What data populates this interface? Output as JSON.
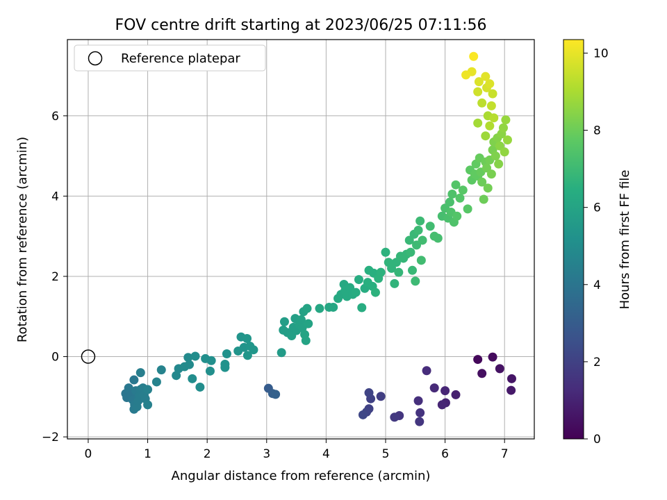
{
  "chart_data": {
    "type": "scatter",
    "title": "FOV centre drift starting at 2023/06/25 07:11:56",
    "xlabel": "Angular distance from reference (arcmin)",
    "ylabel": "Rotation from reference (arcmin)",
    "xlim": [
      -0.35,
      7.5
    ],
    "ylim": [
      -2.05,
      7.9
    ],
    "xticks": [
      0,
      1,
      2,
      3,
      4,
      5,
      6,
      7
    ],
    "yticks": [
      -2,
      0,
      2,
      4,
      6
    ],
    "grid": true,
    "legend": {
      "position": "top-left",
      "entries": [
        "Reference platepar"
      ]
    },
    "reference_point": {
      "x": 0,
      "y": 0,
      "marker": "open-circle"
    },
    "colorbar": {
      "label": "Hours from first FF file",
      "colormap": "viridis",
      "range": [
        0,
        10.35
      ],
      "ticks": [
        0,
        2,
        4,
        6,
        8,
        10
      ]
    },
    "points": [
      {
        "x": 6.55,
        "y": -0.07,
        "c": 0.2
      },
      {
        "x": 6.8,
        "y": -0.01,
        "c": 0.3
      },
      {
        "x": 6.92,
        "y": -0.3,
        "c": 0.5
      },
      {
        "x": 7.12,
        "y": -0.55,
        "c": 0.6
      },
      {
        "x": 7.11,
        "y": -0.84,
        "c": 0.7
      },
      {
        "x": 6.62,
        "y": -0.42,
        "c": 0.4
      },
      {
        "x": 6.18,
        "y": -0.95,
        "c": 0.9
      },
      {
        "x": 6.0,
        "y": -0.85,
        "c": 1.1
      },
      {
        "x": 5.82,
        "y": -0.78,
        "c": 1.2
      },
      {
        "x": 5.69,
        "y": -0.35,
        "c": 1.3
      },
      {
        "x": 6.01,
        "y": -1.15,
        "c": 1.0
      },
      {
        "x": 5.95,
        "y": -1.2,
        "c": 1.1
      },
      {
        "x": 5.55,
        "y": -1.1,
        "c": 1.4
      },
      {
        "x": 5.58,
        "y": -1.4,
        "c": 1.5
      },
      {
        "x": 5.57,
        "y": -1.62,
        "c": 1.6
      },
      {
        "x": 5.23,
        "y": -1.47,
        "c": 1.6
      },
      {
        "x": 5.15,
        "y": -1.51,
        "c": 1.7
      },
      {
        "x": 4.92,
        "y": -0.99,
        "c": 1.9
      },
      {
        "x": 4.75,
        "y": -1.05,
        "c": 2.0
      },
      {
        "x": 4.72,
        "y": -0.9,
        "c": 2.1
      },
      {
        "x": 4.72,
        "y": -1.3,
        "c": 2.0
      },
      {
        "x": 4.68,
        "y": -1.38,
        "c": 2.1
      },
      {
        "x": 4.62,
        "y": -1.45,
        "c": 2.2
      },
      {
        "x": 3.03,
        "y": -0.79,
        "c": 3.0
      },
      {
        "x": 3.1,
        "y": -0.92,
        "c": 3.1
      },
      {
        "x": 3.15,
        "y": -0.94,
        "c": 3.2
      },
      {
        "x": 0.63,
        "y": -0.92,
        "c": 4.0
      },
      {
        "x": 0.65,
        "y": -1.02,
        "c": 4.0
      },
      {
        "x": 0.68,
        "y": -0.78,
        "c": 4.1
      },
      {
        "x": 0.72,
        "y": -0.95,
        "c": 4.0
      },
      {
        "x": 0.75,
        "y": -1.08,
        "c": 4.1
      },
      {
        "x": 0.77,
        "y": -0.58,
        "c": 4.1
      },
      {
        "x": 0.78,
        "y": -1.2,
        "c": 4.2
      },
      {
        "x": 0.77,
        "y": -1.31,
        "c": 4.2
      },
      {
        "x": 0.8,
        "y": -0.85,
        "c": 4.2
      },
      {
        "x": 0.82,
        "y": -1.25,
        "c": 4.3
      },
      {
        "x": 0.84,
        "y": -1.1,
        "c": 4.3
      },
      {
        "x": 0.86,
        "y": -0.98,
        "c": 4.3
      },
      {
        "x": 0.88,
        "y": -0.82,
        "c": 4.3
      },
      {
        "x": 0.88,
        "y": -0.4,
        "c": 4.4
      },
      {
        "x": 0.92,
        "y": -0.78,
        "c": 4.4
      },
      {
        "x": 0.94,
        "y": -0.95,
        "c": 4.4
      },
      {
        "x": 0.96,
        "y": -1.05,
        "c": 4.4
      },
      {
        "x": 1.0,
        "y": -0.82,
        "c": 4.5
      },
      {
        "x": 1.0,
        "y": -1.2,
        "c": 4.5
      },
      {
        "x": 1.15,
        "y": -0.63,
        "c": 4.6
      },
      {
        "x": 1.23,
        "y": -0.33,
        "c": 4.6
      },
      {
        "x": 1.48,
        "y": -0.47,
        "c": 4.8
      },
      {
        "x": 1.52,
        "y": -0.3,
        "c": 4.8
      },
      {
        "x": 1.62,
        "y": -0.25,
        "c": 4.9
      },
      {
        "x": 1.68,
        "y": -0.02,
        "c": 4.9
      },
      {
        "x": 1.7,
        "y": -0.2,
        "c": 4.9
      },
      {
        "x": 1.75,
        "y": -0.55,
        "c": 5.0
      },
      {
        "x": 1.8,
        "y": 0.01,
        "c": 5.0
      },
      {
        "x": 1.88,
        "y": -0.76,
        "c": 5.0
      },
      {
        "x": 1.97,
        "y": -0.05,
        "c": 5.1
      },
      {
        "x": 2.05,
        "y": -0.36,
        "c": 5.1
      },
      {
        "x": 2.07,
        "y": -0.1,
        "c": 5.1
      },
      {
        "x": 2.3,
        "y": -0.19,
        "c": 5.2
      },
      {
        "x": 2.3,
        "y": -0.27,
        "c": 5.2
      },
      {
        "x": 2.33,
        "y": 0.07,
        "c": 5.2
      },
      {
        "x": 2.52,
        "y": 0.14,
        "c": 5.3
      },
      {
        "x": 2.57,
        "y": 0.49,
        "c": 5.3
      },
      {
        "x": 2.62,
        "y": 0.23,
        "c": 5.3
      },
      {
        "x": 2.67,
        "y": 0.45,
        "c": 5.4
      },
      {
        "x": 2.68,
        "y": 0.03,
        "c": 5.4
      },
      {
        "x": 2.72,
        "y": 0.26,
        "c": 5.4
      },
      {
        "x": 2.78,
        "y": 0.17,
        "c": 5.4
      },
      {
        "x": 3.25,
        "y": 0.1,
        "c": 5.6
      },
      {
        "x": 3.28,
        "y": 0.66,
        "c": 5.7
      },
      {
        "x": 3.3,
        "y": 0.87,
        "c": 5.7
      },
      {
        "x": 3.35,
        "y": 0.6,
        "c": 5.7
      },
      {
        "x": 3.42,
        "y": 0.52,
        "c": 5.8
      },
      {
        "x": 3.45,
        "y": 0.73,
        "c": 5.8
      },
      {
        "x": 3.48,
        "y": 0.95,
        "c": 5.8
      },
      {
        "x": 3.5,
        "y": 0.65,
        "c": 5.8
      },
      {
        "x": 3.55,
        "y": 0.8,
        "c": 5.9
      },
      {
        "x": 3.58,
        "y": 0.92,
        "c": 5.9
      },
      {
        "x": 3.6,
        "y": 0.72,
        "c": 5.9
      },
      {
        "x": 3.62,
        "y": 1.12,
        "c": 5.9
      },
      {
        "x": 3.64,
        "y": 0.55,
        "c": 6.0
      },
      {
        "x": 3.66,
        "y": 0.4,
        "c": 6.0
      },
      {
        "x": 3.68,
        "y": 1.2,
        "c": 6.0
      },
      {
        "x": 3.7,
        "y": 0.82,
        "c": 6.0
      },
      {
        "x": 3.89,
        "y": 1.2,
        "c": 6.1
      },
      {
        "x": 4.05,
        "y": 1.23,
        "c": 6.1
      },
      {
        "x": 4.12,
        "y": 1.23,
        "c": 6.1
      },
      {
        "x": 4.2,
        "y": 1.45,
        "c": 6.2
      },
      {
        "x": 4.25,
        "y": 1.55,
        "c": 6.2
      },
      {
        "x": 4.3,
        "y": 1.8,
        "c": 6.2
      },
      {
        "x": 4.32,
        "y": 1.65,
        "c": 6.3
      },
      {
        "x": 4.35,
        "y": 1.5,
        "c": 6.3
      },
      {
        "x": 4.4,
        "y": 1.72,
        "c": 6.3
      },
      {
        "x": 4.45,
        "y": 1.55,
        "c": 6.3
      },
      {
        "x": 4.5,
        "y": 1.6,
        "c": 6.4
      },
      {
        "x": 4.55,
        "y": 1.92,
        "c": 6.4
      },
      {
        "x": 4.6,
        "y": 1.22,
        "c": 6.4
      },
      {
        "x": 4.65,
        "y": 1.7,
        "c": 6.4
      },
      {
        "x": 4.7,
        "y": 1.85,
        "c": 6.5
      },
      {
        "x": 4.72,
        "y": 2.15,
        "c": 6.5
      },
      {
        "x": 4.78,
        "y": 1.75,
        "c": 6.5
      },
      {
        "x": 4.8,
        "y": 2.08,
        "c": 6.5
      },
      {
        "x": 4.83,
        "y": 1.6,
        "c": 6.6
      },
      {
        "x": 4.88,
        "y": 1.95,
        "c": 6.6
      },
      {
        "x": 4.92,
        "y": 2.1,
        "c": 6.6
      },
      {
        "x": 5.0,
        "y": 2.6,
        "c": 6.6
      },
      {
        "x": 5.05,
        "y": 2.35,
        "c": 6.7
      },
      {
        "x": 5.1,
        "y": 2.2,
        "c": 6.7
      },
      {
        "x": 5.15,
        "y": 1.82,
        "c": 6.7
      },
      {
        "x": 5.18,
        "y": 2.35,
        "c": 6.7
      },
      {
        "x": 5.22,
        "y": 2.1,
        "c": 6.8
      },
      {
        "x": 5.25,
        "y": 2.5,
        "c": 6.8
      },
      {
        "x": 5.3,
        "y": 2.45,
        "c": 6.8
      },
      {
        "x": 5.35,
        "y": 2.55,
        "c": 6.8
      },
      {
        "x": 5.4,
        "y": 2.9,
        "c": 6.9
      },
      {
        "x": 5.42,
        "y": 2.6,
        "c": 6.9
      },
      {
        "x": 5.45,
        "y": 2.15,
        "c": 6.9
      },
      {
        "x": 5.48,
        "y": 3.05,
        "c": 6.9
      },
      {
        "x": 5.5,
        "y": 1.88,
        "c": 7.0
      },
      {
        "x": 5.52,
        "y": 2.78,
        "c": 7.0
      },
      {
        "x": 5.55,
        "y": 3.15,
        "c": 7.0
      },
      {
        "x": 5.58,
        "y": 3.38,
        "c": 7.0
      },
      {
        "x": 5.6,
        "y": 2.4,
        "c": 7.1
      },
      {
        "x": 5.62,
        "y": 2.9,
        "c": 7.1
      },
      {
        "x": 5.75,
        "y": 3.25,
        "c": 7.1
      },
      {
        "x": 5.82,
        "y": 3.0,
        "c": 7.2
      },
      {
        "x": 5.88,
        "y": 2.95,
        "c": 7.2
      },
      {
        "x": 5.95,
        "y": 3.5,
        "c": 7.2
      },
      {
        "x": 6.0,
        "y": 3.7,
        "c": 7.3
      },
      {
        "x": 6.05,
        "y": 3.45,
        "c": 7.3
      },
      {
        "x": 6.08,
        "y": 3.85,
        "c": 7.3
      },
      {
        "x": 6.1,
        "y": 3.6,
        "c": 7.4
      },
      {
        "x": 6.12,
        "y": 4.05,
        "c": 7.4
      },
      {
        "x": 6.15,
        "y": 3.35,
        "c": 7.4
      },
      {
        "x": 6.18,
        "y": 4.28,
        "c": 7.5
      },
      {
        "x": 6.2,
        "y": 3.5,
        "c": 7.5
      },
      {
        "x": 6.25,
        "y": 3.95,
        "c": 7.5
      },
      {
        "x": 6.3,
        "y": 4.15,
        "c": 7.6
      },
      {
        "x": 6.38,
        "y": 3.68,
        "c": 7.6
      },
      {
        "x": 6.42,
        "y": 4.65,
        "c": 7.7
      },
      {
        "x": 6.45,
        "y": 4.4,
        "c": 7.7
      },
      {
        "x": 6.5,
        "y": 4.55,
        "c": 7.8
      },
      {
        "x": 6.52,
        "y": 4.8,
        "c": 7.8
      },
      {
        "x": 6.55,
        "y": 4.5,
        "c": 7.8
      },
      {
        "x": 6.58,
        "y": 4.95,
        "c": 7.9
      },
      {
        "x": 6.6,
        "y": 4.6,
        "c": 7.9
      },
      {
        "x": 6.62,
        "y": 4.35,
        "c": 8.0
      },
      {
        "x": 6.65,
        "y": 3.92,
        "c": 8.0
      },
      {
        "x": 6.68,
        "y": 4.85,
        "c": 8.0
      },
      {
        "x": 6.7,
        "y": 4.7,
        "c": 8.1
      },
      {
        "x": 6.72,
        "y": 4.2,
        "c": 8.1
      },
      {
        "x": 6.75,
        "y": 4.9,
        "c": 8.1
      },
      {
        "x": 6.78,
        "y": 4.55,
        "c": 8.2
      },
      {
        "x": 6.8,
        "y": 5.15,
        "c": 8.2
      },
      {
        "x": 6.82,
        "y": 5.35,
        "c": 8.3
      },
      {
        "x": 6.85,
        "y": 5.0,
        "c": 8.3
      },
      {
        "x": 6.88,
        "y": 5.45,
        "c": 8.4
      },
      {
        "x": 6.9,
        "y": 4.8,
        "c": 8.4
      },
      {
        "x": 6.92,
        "y": 5.25,
        "c": 8.5
      },
      {
        "x": 6.95,
        "y": 5.55,
        "c": 8.5
      },
      {
        "x": 6.98,
        "y": 5.7,
        "c": 8.6
      },
      {
        "x": 7.0,
        "y": 5.1,
        "c": 8.6
      },
      {
        "x": 7.02,
        "y": 5.9,
        "c": 8.7
      },
      {
        "x": 7.05,
        "y": 5.4,
        "c": 8.7
      },
      {
        "x": 6.68,
        "y": 5.5,
        "c": 8.8
      },
      {
        "x": 6.55,
        "y": 5.82,
        "c": 8.9
      },
      {
        "x": 6.72,
        "y": 6.0,
        "c": 9.0
      },
      {
        "x": 6.75,
        "y": 5.75,
        "c": 9.1
      },
      {
        "x": 6.82,
        "y": 5.95,
        "c": 9.2
      },
      {
        "x": 6.62,
        "y": 6.32,
        "c": 9.3
      },
      {
        "x": 6.78,
        "y": 6.25,
        "c": 9.4
      },
      {
        "x": 6.8,
        "y": 6.55,
        "c": 9.5
      },
      {
        "x": 6.55,
        "y": 6.6,
        "c": 9.6
      },
      {
        "x": 6.7,
        "y": 6.7,
        "c": 9.7
      },
      {
        "x": 6.75,
        "y": 6.8,
        "c": 9.8
      },
      {
        "x": 6.57,
        "y": 6.85,
        "c": 9.8
      },
      {
        "x": 6.68,
        "y": 6.98,
        "c": 9.9
      },
      {
        "x": 6.45,
        "y": 7.1,
        "c": 10.0
      },
      {
        "x": 6.35,
        "y": 7.02,
        "c": 10.1
      },
      {
        "x": 6.48,
        "y": 7.48,
        "c": 10.3
      }
    ]
  }
}
